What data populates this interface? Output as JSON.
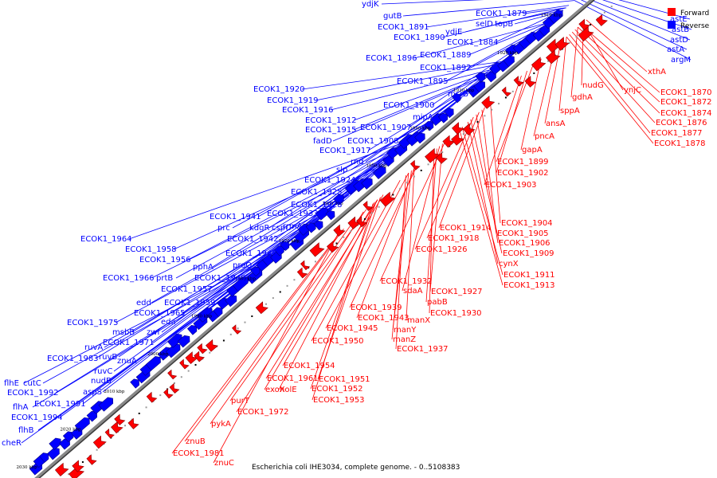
{
  "caption": "Escherichia coli IHE3034, complete genome. - 0..5108383",
  "legend": [
    {
      "label": "Forward",
      "color": "#ff0000"
    },
    {
      "label": "Reverse",
      "color": "#0000ff"
    }
  ],
  "colors": {
    "forward": "#ff0000",
    "reverse": "#0000ff",
    "backbone": "#888888"
  },
  "ticks": [
    "1910 kbp",
    "1920 kbp",
    "1930 kbp",
    "1940 kbp",
    "1950 kbp",
    "1960 kbp",
    "1970 kbp",
    "1980 kbp",
    "1990 kbp",
    "2000 kbp",
    "2010 kbp",
    "2020 kbp",
    "2030 kbp"
  ],
  "reverse_labels": [
    "ydjK",
    "gutB",
    "ECOK1_1891",
    "ECOK1_1890",
    "ydjE",
    "ECOK1_1884",
    "ECOK1_1879",
    "selD",
    "topB",
    "ECOK1_1896",
    "ECOK1_1889",
    "ECOK1_1892",
    "ECOK1_1895",
    "msrB",
    "ECOK1_1900",
    "mipA",
    "ECOK1_1907",
    "ECOK1_1920",
    "ECOK1_1919",
    "ECOK1_1916",
    "ECOK1_1912",
    "ECOK1_1915",
    "fadD",
    "ECOK1_1908",
    "ECOK1_1917",
    "rnd",
    "slp",
    "ECOK1_1924",
    "ECOK1_1925",
    "ECOK1_1928",
    "ECOK1_1933",
    "ECOK1_1941",
    "prc",
    "kdgR",
    "cspC",
    "rrmA",
    "ECOK1_1942",
    "ECOK1_1964",
    "ECOK1_1958",
    "ECOK1_1946",
    "ECOK1_1956",
    "pphA",
    "proQ",
    "ECOK1_1966",
    "prtB",
    "ECOK1_1949",
    "ECOK1_1957",
    "edd",
    "ECOK1_1959",
    "ECOK1_1965",
    "eda",
    "ECOK1_1975",
    "msbB",
    "zwf",
    "ECOK1_1971",
    "ruvA",
    "ruvB",
    "ECOK1_1983",
    "znuA",
    "ruvC",
    "nudB",
    "flhE",
    "cutC",
    "aspS",
    "ECOK1_1992",
    "ECOK1_1991",
    "flhA",
    "ECOK1_1994",
    "flhB",
    "cheR",
    "astE",
    "astB",
    "astD",
    "astA",
    "argM"
  ],
  "forward_labels": [
    "xthA",
    "ynjC",
    "nudG",
    "gdhA",
    "ECOK1_1870",
    "ECOK1_1872",
    "ECOK1_1874",
    "ECOK1_1876",
    "ECOK1_1877",
    "ECOK1_1878",
    "sppA",
    "ansA",
    "pncA",
    "gapA",
    "ECOK1_1899",
    "ECOK1_1902",
    "ECOK1_1903",
    "ECOK1_1904",
    "ECOK1_1914",
    "ECOK1_1905",
    "ECOK1_1918",
    "ECOK1_1906",
    "ECOK1_1926",
    "ECOK1_1909",
    "cynX",
    "ECOK1_1911",
    "ECOK1_1913",
    "ECOK1_1932",
    "ECOK1_1927",
    "sdaA",
    "pabB",
    "ECOK1_1930",
    "ECOK1_1939",
    "ECOK1_1943",
    "manX",
    "ECOK1_1945",
    "manY",
    "ECOK1_1950",
    "manZ",
    "ECOK1_1937",
    "ECOK1_1954",
    "ECOK1_1961",
    "ECOK1_1951",
    "exoX",
    "holE",
    "ECOK1_1952",
    "ECOK1_1953",
    "purT",
    "ECOK1_1972",
    "pykA",
    "znuB",
    "ECOK1_1981",
    "znuC"
  ]
}
